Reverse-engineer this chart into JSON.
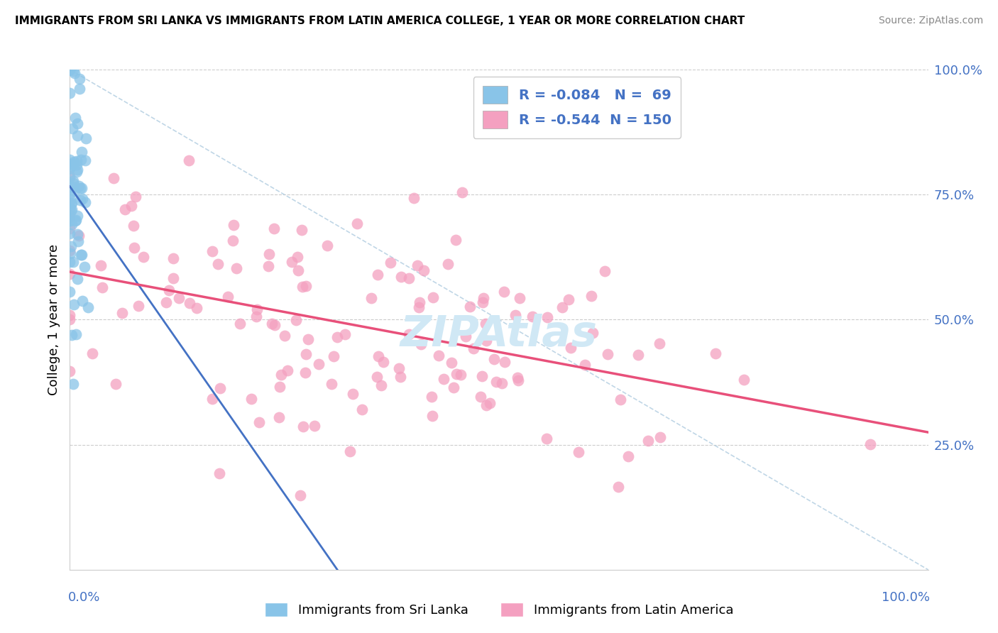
{
  "title": "IMMIGRANTS FROM SRI LANKA VS IMMIGRANTS FROM LATIN AMERICA COLLEGE, 1 YEAR OR MORE CORRELATION CHART",
  "source": "Source: ZipAtlas.com",
  "ylabel": "College, 1 year or more",
  "r_sri_lanka": -0.084,
  "n_sri_lanka": 69,
  "r_latin_america": -0.544,
  "n_latin_america": 150,
  "color_sri_lanka": "#89C4E8",
  "color_latin_america": "#F4A0C0",
  "line_color_sri_lanka": "#4472C4",
  "line_color_latin_america": "#E8507A",
  "background_color": "#FFFFFF",
  "grid_color": "#CCCCCC",
  "tick_color": "#4472C4",
  "watermark_color": "#D0E8F5",
  "legend_text_color": "#4472C4"
}
